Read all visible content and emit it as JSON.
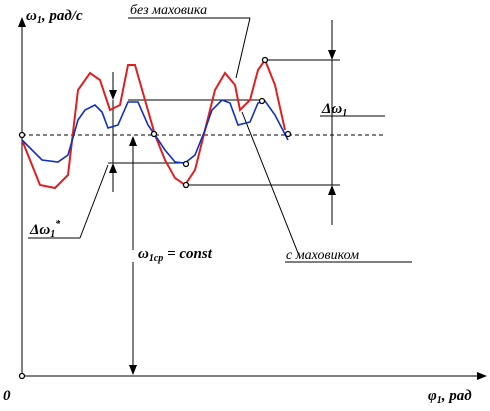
{
  "axes": {
    "y_label": {
      "symbol": "ω",
      "subscript": "1",
      "unit": ", рад/с"
    },
    "x_label": {
      "symbol": "φ",
      "subscript": "1",
      "unit": ", рад"
    },
    "origin": "0"
  },
  "annotations": {
    "without_flywheel": "без маховика",
    "with_flywheel": "с маховиком",
    "delta_big": {
      "symbol": "Δω",
      "subscript": "1"
    },
    "delta_small": {
      "symbol": "Δω",
      "subscript": "1",
      "sup": "*"
    },
    "mean": {
      "symbol": "ω",
      "subscript": "1ср",
      "rest": " = const"
    }
  }
}
